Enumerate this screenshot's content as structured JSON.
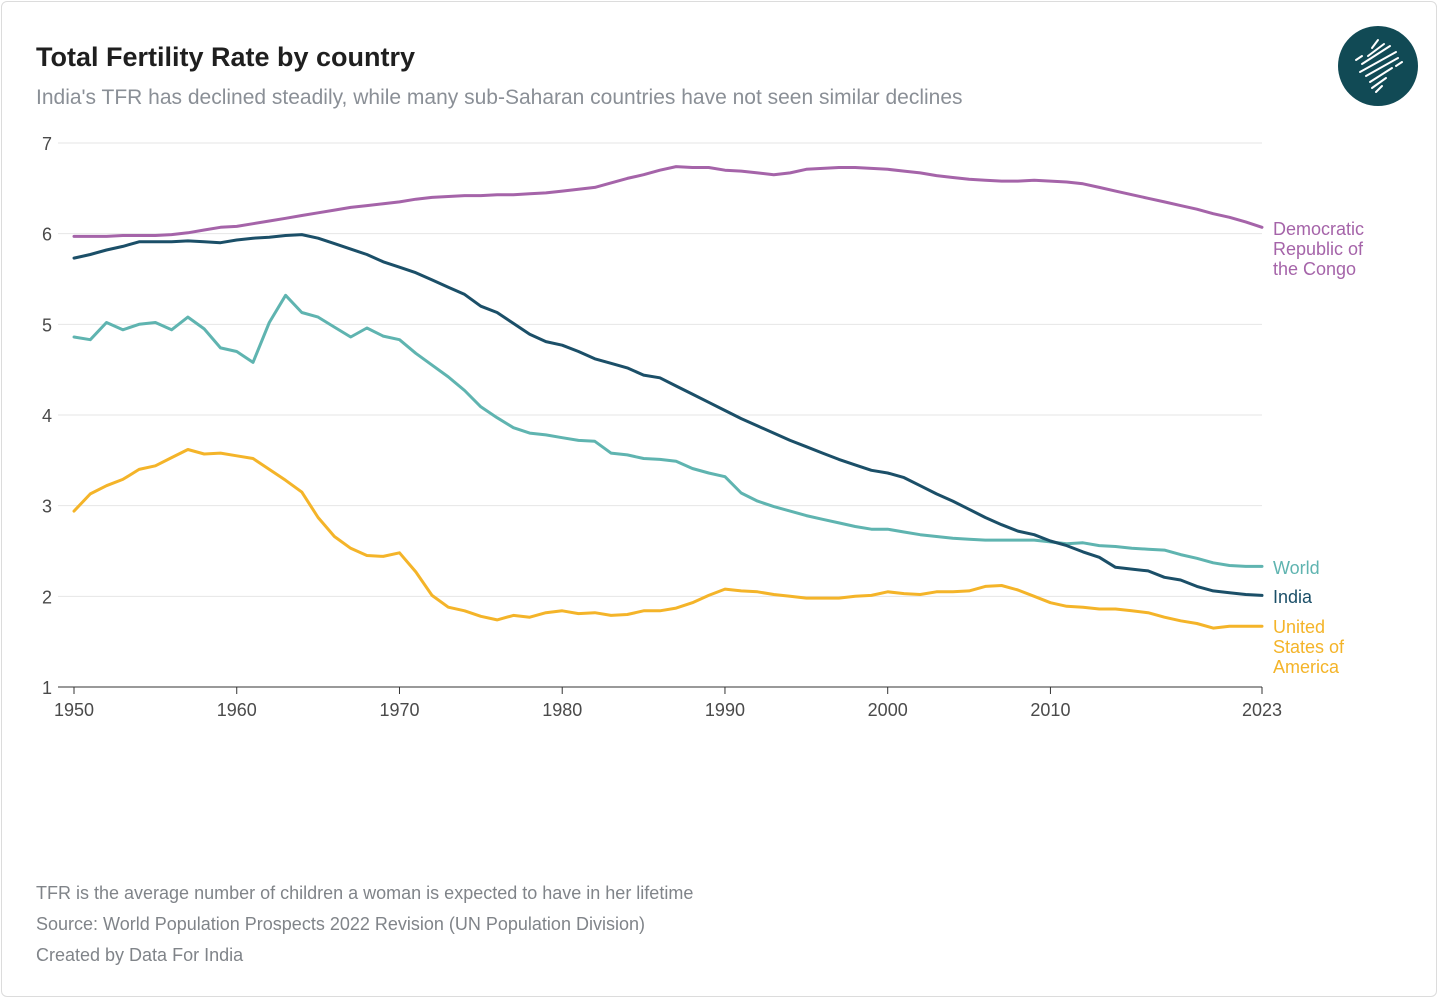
{
  "header": {
    "title": "Total Fertility Rate by country",
    "subtitle": "India's TFR has declined steadily, while many sub-Saharan countries have not seen similar declines"
  },
  "logo": {
    "icon": "india-map-logo-icon",
    "color": "#114a55"
  },
  "footer": {
    "note": "TFR is the average number of children a woman is expected to have in her lifetime",
    "source": "Source: World Population Prospects 2022 Revision (UN Population Division)",
    "credit": "Created by Data For India"
  },
  "chart_data": {
    "type": "line",
    "title": "",
    "xlabel": "",
    "ylabel": "",
    "xlim": [
      1950,
      2023
    ],
    "ylim": [
      1,
      7
    ],
    "x_ticks": [
      1950,
      1960,
      1970,
      1980,
      1990,
      2000,
      2010,
      2023
    ],
    "y_ticks": [
      1,
      2,
      3,
      4,
      5,
      6,
      7
    ],
    "grid": "horizontal",
    "legend": "right end labels",
    "x": [
      1950,
      1951,
      1952,
      1953,
      1954,
      1955,
      1956,
      1957,
      1958,
      1959,
      1960,
      1961,
      1962,
      1963,
      1964,
      1965,
      1966,
      1967,
      1968,
      1969,
      1970,
      1971,
      1972,
      1973,
      1974,
      1975,
      1976,
      1977,
      1978,
      1979,
      1980,
      1981,
      1982,
      1983,
      1984,
      1985,
      1986,
      1987,
      1988,
      1989,
      1990,
      1991,
      1992,
      1993,
      1994,
      1995,
      1996,
      1997,
      1998,
      1999,
      2000,
      2001,
      2002,
      2003,
      2004,
      2005,
      2006,
      2007,
      2008,
      2009,
      2010,
      2011,
      2012,
      2013,
      2014,
      2015,
      2016,
      2017,
      2018,
      2019,
      2020,
      2021,
      2022,
      2023
    ],
    "series": [
      {
        "name": "Democratic Republic of the Congo",
        "label_lines": [
          "Democratic",
          "Republic of",
          "the Congo"
        ],
        "color": "#a564a9",
        "values": [
          5.97,
          5.97,
          5.97,
          5.98,
          5.98,
          5.98,
          5.99,
          6.01,
          6.04,
          6.07,
          6.08,
          6.11,
          6.14,
          6.17,
          6.2,
          6.23,
          6.26,
          6.29,
          6.31,
          6.33,
          6.35,
          6.38,
          6.4,
          6.41,
          6.42,
          6.42,
          6.43,
          6.43,
          6.44,
          6.45,
          6.47,
          6.49,
          6.51,
          6.56,
          6.61,
          6.65,
          6.7,
          6.74,
          6.73,
          6.73,
          6.7,
          6.69,
          6.67,
          6.65,
          6.67,
          6.71,
          6.72,
          6.73,
          6.73,
          6.72,
          6.71,
          6.69,
          6.67,
          6.64,
          6.62,
          6.6,
          6.59,
          6.58,
          6.58,
          6.59,
          6.58,
          6.57,
          6.55,
          6.51,
          6.47,
          6.43,
          6.39,
          6.35,
          6.31,
          6.27,
          6.22,
          6.18,
          6.13,
          6.07
        ]
      },
      {
        "name": "World",
        "label_lines": [
          "World"
        ],
        "color": "#5fb4b0",
        "values": [
          4.86,
          4.83,
          5.02,
          4.94,
          5.0,
          5.02,
          4.94,
          5.08,
          4.95,
          4.74,
          4.7,
          4.58,
          5.02,
          5.32,
          5.13,
          5.08,
          4.97,
          4.86,
          4.96,
          4.87,
          4.83,
          4.68,
          4.55,
          4.42,
          4.27,
          4.09,
          3.97,
          3.86,
          3.8,
          3.78,
          3.75,
          3.72,
          3.71,
          3.58,
          3.56,
          3.52,
          3.51,
          3.49,
          3.41,
          3.36,
          3.32,
          3.14,
          3.05,
          2.99,
          2.94,
          2.89,
          2.85,
          2.81,
          2.77,
          2.74,
          2.74,
          2.71,
          2.68,
          2.66,
          2.64,
          2.63,
          2.62,
          2.62,
          2.62,
          2.62,
          2.6,
          2.58,
          2.59,
          2.56,
          2.55,
          2.53,
          2.52,
          2.51,
          2.46,
          2.42,
          2.37,
          2.34,
          2.33,
          2.33
        ]
      },
      {
        "name": "India",
        "label_lines": [
          "India"
        ],
        "color": "#1b4f68",
        "values": [
          5.73,
          5.77,
          5.82,
          5.86,
          5.91,
          5.91,
          5.91,
          5.92,
          5.91,
          5.9,
          5.93,
          5.95,
          5.96,
          5.98,
          5.99,
          5.95,
          5.89,
          5.83,
          5.77,
          5.69,
          5.63,
          5.57,
          5.49,
          5.41,
          5.33,
          5.2,
          5.13,
          5.01,
          4.89,
          4.81,
          4.77,
          4.7,
          4.62,
          4.57,
          4.52,
          4.44,
          4.41,
          4.32,
          4.23,
          4.14,
          4.05,
          3.96,
          3.88,
          3.8,
          3.72,
          3.65,
          3.58,
          3.51,
          3.45,
          3.39,
          3.36,
          3.31,
          3.22,
          3.13,
          3.05,
          2.96,
          2.87,
          2.79,
          2.72,
          2.68,
          2.61,
          2.56,
          2.49,
          2.43,
          2.32,
          2.3,
          2.28,
          2.21,
          2.18,
          2.11,
          2.06,
          2.04,
          2.02,
          2.01
        ]
      },
      {
        "name": "United States of America",
        "label_lines": [
          "United",
          "States of",
          "America"
        ],
        "color": "#f4b429",
        "values": [
          2.94,
          3.13,
          3.22,
          3.29,
          3.4,
          3.44,
          3.53,
          3.62,
          3.57,
          3.58,
          3.55,
          3.52,
          3.4,
          3.28,
          3.15,
          2.87,
          2.66,
          2.53,
          2.45,
          2.44,
          2.48,
          2.27,
          2.01,
          1.88,
          1.84,
          1.78,
          1.74,
          1.79,
          1.77,
          1.82,
          1.84,
          1.81,
          1.82,
          1.79,
          1.8,
          1.84,
          1.84,
          1.87,
          1.93,
          2.01,
          2.08,
          2.06,
          2.05,
          2.02,
          2.0,
          1.98,
          1.98,
          1.98,
          2.0,
          2.01,
          2.05,
          2.03,
          2.02,
          2.05,
          2.05,
          2.06,
          2.11,
          2.12,
          2.07,
          2.0,
          1.93,
          1.89,
          1.88,
          1.86,
          1.86,
          1.84,
          1.82,
          1.77,
          1.73,
          1.7,
          1.65,
          1.67,
          1.67,
          1.67
        ]
      }
    ]
  }
}
